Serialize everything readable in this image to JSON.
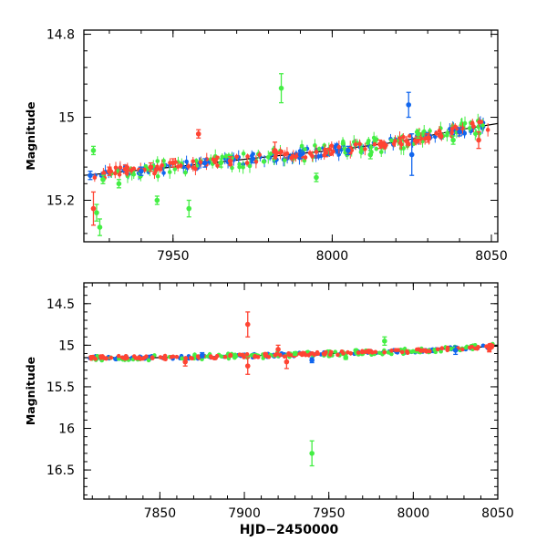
{
  "colors": {
    "green": "#44ee44",
    "blue": "#1166ee",
    "red": "#ff4433",
    "model": "#000000"
  },
  "chart_data": [
    {
      "type": "scatter",
      "title": "",
      "xlabel": "",
      "ylabel": "Magnitude",
      "xlim": [
        7922,
        8052
      ],
      "ylim": [
        15.3,
        14.79
      ],
      "y_inverted": true,
      "grid": false,
      "x_ticks": [
        7950,
        8000,
        8050
      ],
      "x_tick_labels": [
        "7950",
        "8000",
        "8050"
      ],
      "y_ticks": [
        14.8,
        15,
        15.2
      ],
      "y_tick_labels": [
        "14.8",
        "15",
        "15.2"
      ],
      "model_line": {
        "x": [
          7922,
          7950,
          7980,
          8000,
          8020,
          8040,
          8052
        ],
        "y": [
          15.14,
          15.12,
          15.095,
          15.08,
          15.06,
          15.03,
          15.015
        ]
      },
      "series": [
        {
          "color": "green",
          "points": [
            {
              "x": 7925,
              "y": 15.08,
              "err": 0.01
            },
            {
              "x": 7926,
              "y": 15.23,
              "err": 0.02
            },
            {
              "x": 7927,
              "y": 15.265,
              "err": 0.02
            },
            {
              "x": 7928,
              "y": 15.15,
              "err": 0.01
            },
            {
              "x": 7933,
              "y": 15.16,
              "err": 0.01
            },
            {
              "x": 7945,
              "y": 15.2,
              "err": 0.01
            },
            {
              "x": 7955,
              "y": 15.22,
              "err": 0.02
            },
            {
              "x": 7965,
              "y": 15.11,
              "err": 0.01
            },
            {
              "x": 7984,
              "y": 14.93,
              "err": 0.035
            },
            {
              "x": 7995,
              "y": 15.145,
              "err": 0.01
            },
            {
              "x": 8012,
              "y": 15.09,
              "err": 0.01
            },
            {
              "x": 8027,
              "y": 15.04,
              "err": 0.01
            },
            {
              "x": 8038,
              "y": 15.055,
              "err": 0.01
            }
          ]
        },
        {
          "color": "blue",
          "points": [
            {
              "x": 7924,
              "y": 15.14,
              "err": 0.01
            },
            {
              "x": 7940,
              "y": 15.13,
              "err": 0.01
            },
            {
              "x": 7960,
              "y": 15.11,
              "err": 0.01
            },
            {
              "x": 7975,
              "y": 15.1,
              "err": 0.01
            },
            {
              "x": 7990,
              "y": 15.09,
              "err": 0.01
            },
            {
              "x": 8005,
              "y": 15.08,
              "err": 0.01
            },
            {
              "x": 8024,
              "y": 14.97,
              "err": 0.03
            },
            {
              "x": 8025,
              "y": 15.09,
              "err": 0.05
            },
            {
              "x": 8040,
              "y": 15.035,
              "err": 0.01
            }
          ]
        },
        {
          "color": "red",
          "points": [
            {
              "x": 7925,
              "y": 15.22,
              "err": 0.04
            },
            {
              "x": 7930,
              "y": 15.13,
              "err": 0.01
            },
            {
              "x": 7935,
              "y": 15.125,
              "err": 0.01
            },
            {
              "x": 7943,
              "y": 15.12,
              "err": 0.01
            },
            {
              "x": 7950,
              "y": 15.11,
              "err": 0.01
            },
            {
              "x": 7958,
              "y": 15.04,
              "err": 0.01
            },
            {
              "x": 7968,
              "y": 15.105,
              "err": 0.01
            },
            {
              "x": 7982,
              "y": 15.08,
              "err": 0.02
            },
            {
              "x": 7998,
              "y": 15.085,
              "err": 0.01
            },
            {
              "x": 8015,
              "y": 15.065,
              "err": 0.01
            },
            {
              "x": 8030,
              "y": 15.05,
              "err": 0.01
            },
            {
              "x": 8046,
              "y": 15.055,
              "err": 0.02
            }
          ]
        }
      ]
    },
    {
      "type": "scatter",
      "title": "",
      "xlabel": "HJD−2450000",
      "ylabel": "Magnitude",
      "xlim": [
        7805,
        8050
      ],
      "ylim": [
        16.85,
        14.25
      ],
      "y_inverted": true,
      "grid": false,
      "x_ticks": [
        7850,
        7900,
        7950,
        8000,
        8050
      ],
      "x_tick_labels": [
        "7850",
        "7900",
        "7950",
        "8000",
        "8050"
      ],
      "y_ticks": [
        14.5,
        15,
        15.5,
        16,
        16.5
      ],
      "y_tick_labels": [
        "14.5",
        "15",
        "15.5",
        "16",
        "16.5"
      ],
      "model_line": {
        "x": [
          7805,
          7850,
          7900,
          7950,
          8000,
          8050
        ],
        "y": [
          15.15,
          15.15,
          15.13,
          15.1,
          15.07,
          15.01
        ]
      },
      "series": [
        {
          "color": "green",
          "points": [
            {
              "x": 7940,
              "y": 16.3,
              "err": 0.15
            },
            {
              "x": 7983,
              "y": 14.95,
              "err": 0.05
            },
            {
              "x": 7930,
              "y": 15.1,
              "err": 0.02
            },
            {
              "x": 7960,
              "y": 15.15,
              "err": 0.02
            }
          ]
        },
        {
          "color": "blue",
          "points": [
            {
              "x": 7875,
              "y": 15.12,
              "err": 0.03
            },
            {
              "x": 7940,
              "y": 15.18,
              "err": 0.03
            },
            {
              "x": 8025,
              "y": 15.06,
              "err": 0.05
            }
          ]
        },
        {
          "color": "red",
          "points": [
            {
              "x": 7902,
              "y": 14.75,
              "err": 0.15
            },
            {
              "x": 7902,
              "y": 15.25,
              "err": 0.1
            },
            {
              "x": 7920,
              "y": 15.05,
              "err": 0.05
            },
            {
              "x": 7925,
              "y": 15.2,
              "err": 0.08
            },
            {
              "x": 7865,
              "y": 15.2,
              "err": 0.05
            },
            {
              "x": 8045,
              "y": 15.05,
              "err": 0.03
            }
          ]
        }
      ]
    }
  ]
}
